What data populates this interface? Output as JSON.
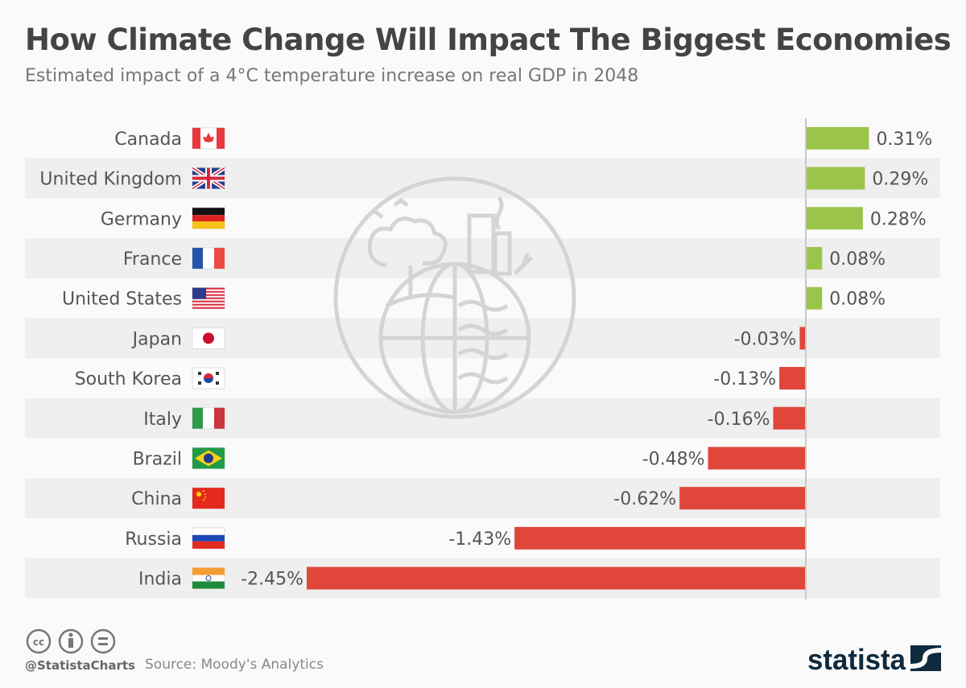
{
  "header": {
    "title": "How Climate Change Will Impact The Biggest Economies",
    "subtitle": "Estimated impact of a 4°C temperature increase on real GDP in 2048"
  },
  "chart_data": {
    "type": "bar",
    "orientation": "horizontal",
    "title": "How Climate Change Will Impact The Biggest Economies",
    "subtitle": "Estimated impact of a 4°C temperature increase on real GDP in 2048",
    "unit": "%",
    "categories": [
      "Canada",
      "United Kingdom",
      "Germany",
      "France",
      "United States",
      "Japan",
      "South Korea",
      "Italy",
      "Brazil",
      "China",
      "Russia",
      "India"
    ],
    "values": [
      0.31,
      0.29,
      0.28,
      0.08,
      0.08,
      -0.03,
      -0.13,
      -0.16,
      -0.48,
      -0.62,
      -1.43,
      -2.45
    ],
    "labels": [
      "0.31%",
      "0.29%",
      "0.28%",
      "0.08%",
      "0.08%",
      "-0.03%",
      "-0.13%",
      "-0.16%",
      "-0.48%",
      "-0.62%",
      "-1.43%",
      "-2.45%"
    ],
    "flags": [
      "canada",
      "united-kingdom",
      "germany",
      "france",
      "united-states",
      "japan",
      "south-korea",
      "italy",
      "brazil",
      "china",
      "russia",
      "india"
    ],
    "xlim": [
      -2.45,
      0.31
    ],
    "grid": false,
    "legend": "none",
    "colors": {
      "positive": "#9bc54a",
      "negative": "#e0463a",
      "band": "#efefef",
      "axis": "#c8c8c8"
    }
  },
  "footer": {
    "handle": "@StatistaCharts",
    "source": "Source: Moody's Analytics",
    "logo_text": "statista"
  }
}
